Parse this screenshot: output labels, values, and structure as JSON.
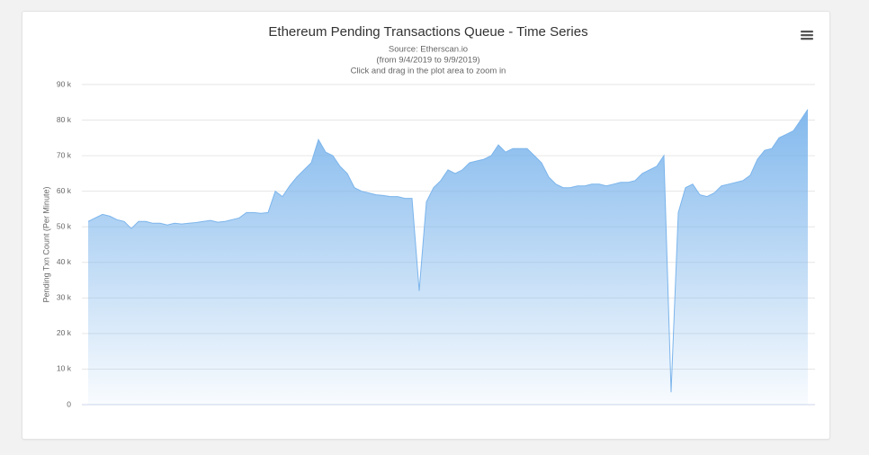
{
  "chart_data": {
    "type": "area",
    "title": "Ethereum Pending Transactions Queue - Time Series",
    "subtitle": [
      "Source: Etherscan.io",
      "(from 9/4/2019 to 9/9/2019)",
      "Click and drag in the plot area to zoom in"
    ],
    "y_label": "Pending Txn Count (Per Minute)",
    "color": "#7cb5ec",
    "grid": true,
    "ylim": [
      0,
      90000
    ],
    "yticks": [
      {
        "value": 0,
        "label": "0"
      },
      {
        "value": 10000,
        "label": "10 k"
      },
      {
        "value": 20000,
        "label": "20 k"
      },
      {
        "value": 30000,
        "label": "30 k"
      },
      {
        "value": 40000,
        "label": "40 k"
      },
      {
        "value": 50000,
        "label": "50 k"
      },
      {
        "value": 60000,
        "label": "60 k"
      },
      {
        "value": 70000,
        "label": "70 k"
      },
      {
        "value": 80000,
        "label": "80 k"
      },
      {
        "value": 90000,
        "label": "90 k"
      }
    ],
    "values": [
      51500,
      52500,
      53500,
      53000,
      52000,
      51500,
      49500,
      51500,
      51500,
      51000,
      51000,
      50500,
      51000,
      50800,
      51000,
      51200,
      51500,
      51800,
      51300,
      51500,
      52000,
      52500,
      54000,
      54000,
      53800,
      54000,
      60000,
      58500,
      61500,
      64000,
      66000,
      68000,
      74500,
      71000,
      70000,
      67000,
      65000,
      61000,
      60000,
      59500,
      59000,
      58800,
      58500,
      58500,
      58000,
      58000,
      32000,
      57000,
      61000,
      63000,
      66000,
      65000,
      66000,
      68000,
      68500,
      69000,
      70000,
      73000,
      71000,
      72000,
      72000,
      72000,
      70000,
      68000,
      64000,
      62000,
      61000,
      61000,
      61500,
      61500,
      62000,
      62000,
      61500,
      62000,
      62500,
      62500,
      63000,
      65000,
      66000,
      67000,
      70000,
      3500,
      54000,
      61000,
      62000,
      59000,
      58500,
      59500,
      61500,
      62000,
      62500,
      63000,
      64500,
      69000,
      71500,
      72000,
      75000,
      76000,
      77000,
      80000,
      83000
    ]
  }
}
